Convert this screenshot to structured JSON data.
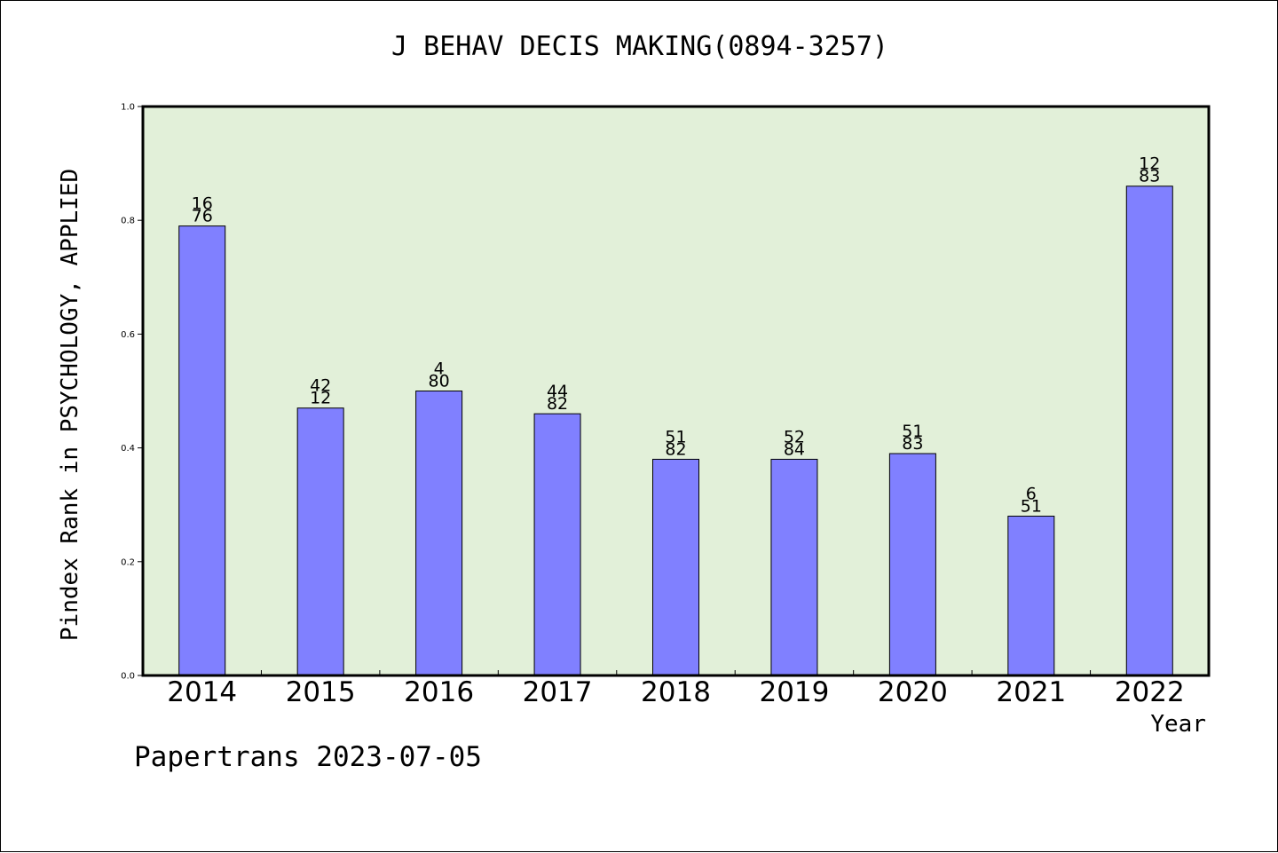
{
  "title": "J BEHAV DECIS MAKING(0894-3257)",
  "footer": "Papertrans 2023-07-05",
  "colors": {
    "bar": "#8080ff",
    "plot_background": "#e2f0d9",
    "axis": "#000000"
  },
  "chart_data": {
    "type": "bar",
    "title": "J BEHAV DECIS MAKING(0894-3257)",
    "xlabel": "Year",
    "ylabel": "Pindex Rank in PSYCHOLOGY, APPLIED",
    "categories": [
      "2014",
      "2015",
      "2016",
      "2017",
      "2018",
      "2019",
      "2020",
      "2021",
      "2022"
    ],
    "values": [
      0.79,
      0.47,
      0.5,
      0.46,
      0.38,
      0.38,
      0.39,
      0.28,
      0.86
    ],
    "bar_labels": [
      [
        "16",
        "76"
      ],
      [
        "42",
        "12"
      ],
      [
        "4",
        "80"
      ],
      [
        "44",
        "82"
      ],
      [
        "51",
        "82"
      ],
      [
        "52",
        "84"
      ],
      [
        "51",
        "83"
      ],
      [
        "6",
        "51"
      ],
      [
        "12",
        "83"
      ]
    ],
    "ylim": [
      0,
      1.0
    ],
    "yticks": [
      "0.0",
      "0.2",
      "0.4",
      "0.6",
      "0.8",
      "1.0"
    ],
    "grid": false,
    "legend": "none"
  }
}
